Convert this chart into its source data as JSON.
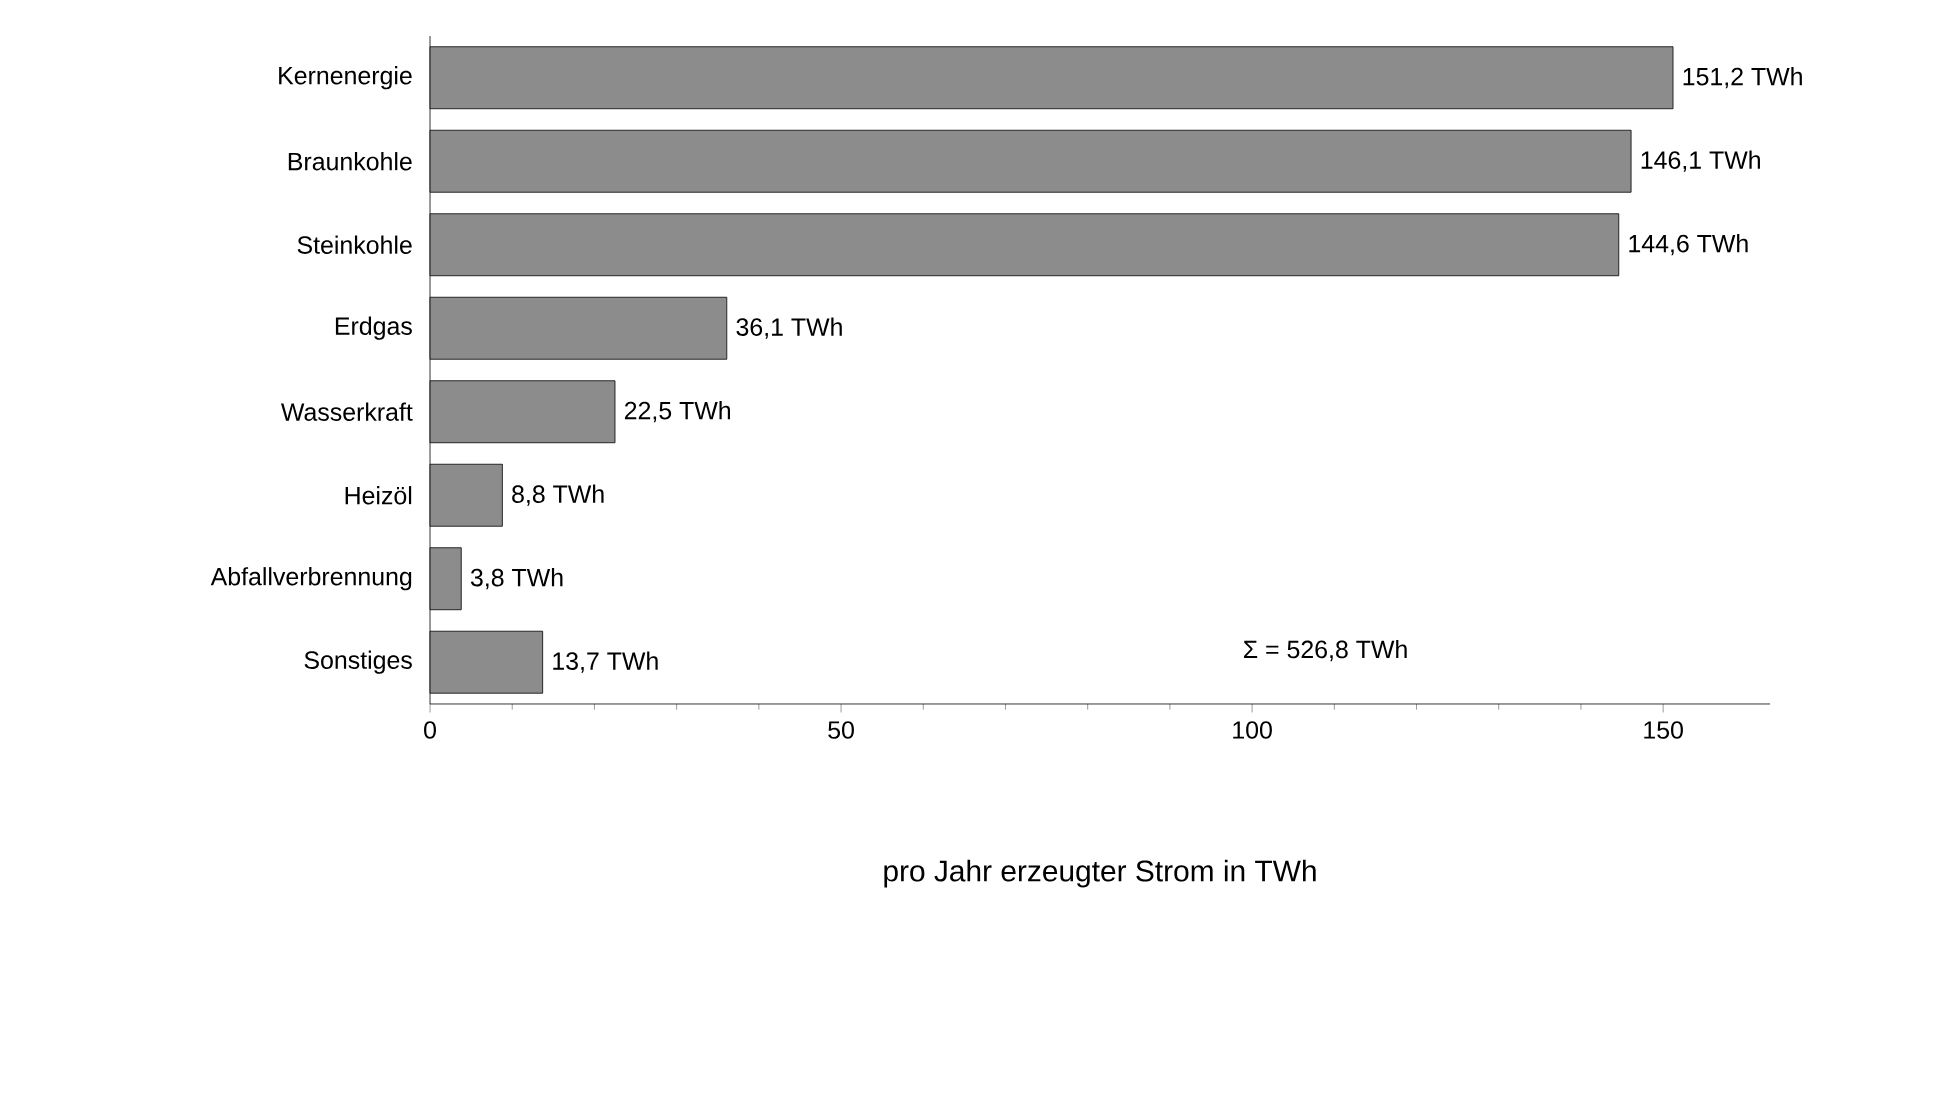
{
  "chart_data": {
    "type": "bar",
    "orientation": "horizontal",
    "xlabel": "pro Jahr erzeugter Strom in TWh",
    "categories": [
      "Kernenergie",
      "Braunkohle",
      "Steinkohle",
      "Erdgas",
      "Wasserkraft",
      "Heizöl",
      "Abfallverbrennung",
      "Sonstiges"
    ],
    "values": [
      151.2,
      146.1,
      144.6,
      36.1,
      22.5,
      8.8,
      3.8,
      13.7
    ],
    "value_labels": [
      "151,2 TWh",
      "146,1 TWh",
      "144,6 TWh",
      "36,1 TWh",
      "22,5 TWh",
      "8,8 TWh",
      "3,8 TWh",
      "13,7 TWh"
    ],
    "color": "#8c8c8c",
    "xlim": [
      0,
      163
    ],
    "xticks": [
      0,
      50,
      100,
      150
    ],
    "annotations": [
      "Σ = 526,8 TWh"
    ]
  }
}
